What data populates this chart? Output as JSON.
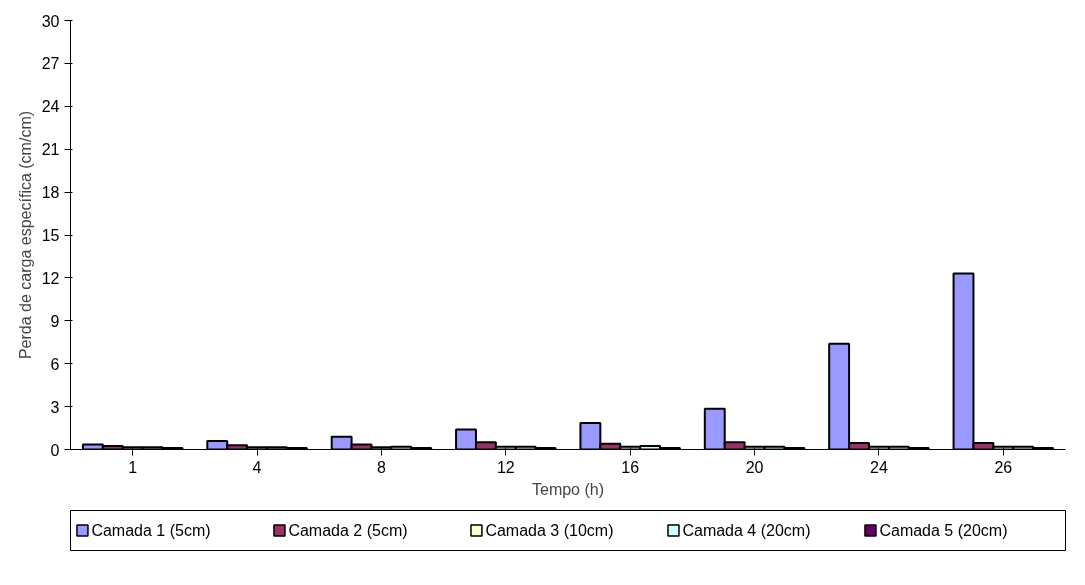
{
  "chart_data": {
    "type": "bar",
    "xlabel": "Tempo (h)",
    "ylabel": "Perda de carga específica (cm/cm)",
    "categories": [
      "1",
      "4",
      "8",
      "12",
      "16",
      "20",
      "24",
      "26"
    ],
    "series": [
      {
        "name": "Camada 1 (5cm)",
        "color": "#9999ff",
        "values": [
          0.35,
          0.6,
          0.9,
          1.4,
          1.85,
          2.85,
          7.4,
          12.3
        ]
      },
      {
        "name": "Camada 2 (5cm)",
        "color": "#993366",
        "values": [
          0.25,
          0.3,
          0.35,
          0.5,
          0.4,
          0.5,
          0.45,
          0.45
        ]
      },
      {
        "name": "Camada 3 (10cm)",
        "color": "#ffffcc",
        "values": [
          0.15,
          0.15,
          0.15,
          0.2,
          0.2,
          0.2,
          0.2,
          0.2
        ]
      },
      {
        "name": "Camada 4 (20cm)",
        "color": "#ccffff",
        "values": [
          0.15,
          0.15,
          0.2,
          0.2,
          0.25,
          0.2,
          0.2,
          0.2
        ]
      },
      {
        "name": "Camada 5 (20cm)",
        "color": "#660066",
        "values": [
          0.1,
          0.1,
          0.1,
          0.1,
          0.1,
          0.1,
          0.1,
          0.1
        ]
      }
    ],
    "ylim": [
      0,
      30
    ],
    "yticks": [
      0,
      3,
      6,
      9,
      12,
      15,
      18,
      21,
      24,
      27,
      30
    ],
    "grid": false,
    "legend": "bottom"
  }
}
